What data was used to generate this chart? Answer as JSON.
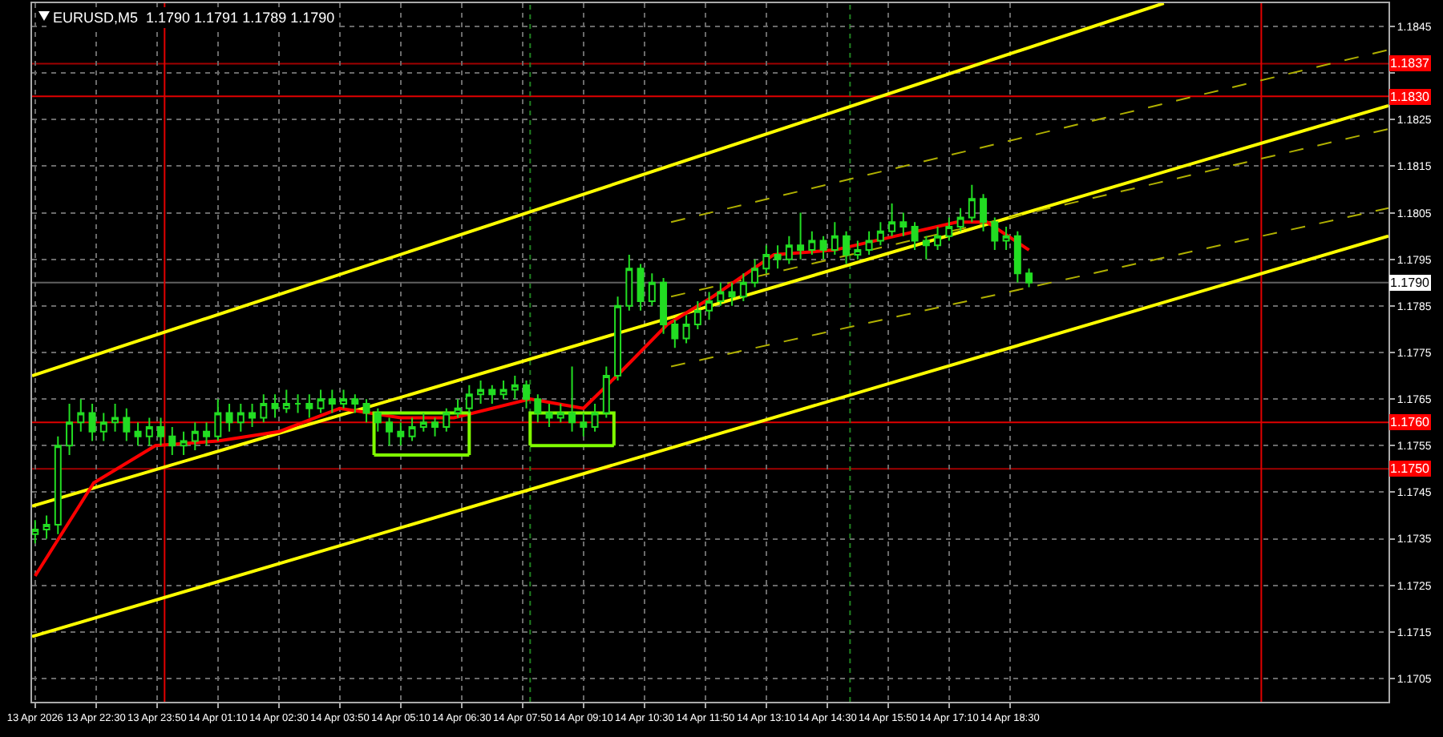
{
  "chart_data": {
    "type": "candlestick",
    "title": "EURUSD,M5  1.1790 1.1791 1.1789 1.1790",
    "xlim": [
      "2026-04-13T21:06",
      "2026-04-15T02:47"
    ],
    "xticks": [
      {
        "value": "2026-04-13T21:10",
        "label": "13 Apr 2026"
      },
      {
        "value": "2026-04-13T22:30",
        "label": "13 Apr 22:30"
      },
      {
        "value": "2026-04-13T23:50",
        "label": "13 Apr 23:50"
      },
      {
        "value": "2026-04-14T01:10",
        "label": "14 Apr 01:10"
      },
      {
        "value": "2026-04-14T02:30",
        "label": "14 Apr 02:30"
      },
      {
        "value": "2026-04-14T03:50",
        "label": "14 Apr 03:50"
      },
      {
        "value": "2026-04-14T05:10",
        "label": "14 Apr 05:10"
      },
      {
        "value": "2026-04-14T06:30",
        "label": "14 Apr 06:30"
      },
      {
        "value": "2026-04-14T07:50",
        "label": "14 Apr 07:50"
      },
      {
        "value": "2026-04-14T09:10",
        "label": "14 Apr 09:10"
      },
      {
        "value": "2026-04-14T10:30",
        "label": "14 Apr 10:30"
      },
      {
        "value": "2026-04-14T11:50",
        "label": "14 Apr 11:50"
      },
      {
        "value": "2026-04-14T13:10",
        "label": "14 Apr 13:10"
      },
      {
        "value": "2026-04-14T14:30",
        "label": "14 Apr 14:30"
      },
      {
        "value": "2026-04-14T15:50",
        "label": "14 Apr 15:50"
      },
      {
        "value": "2026-04-14T17:10",
        "label": "14 Apr 17:10"
      },
      {
        "value": "2026-04-14T18:30",
        "label": "14 Apr 18:30"
      }
    ],
    "ylim": [
      1.17,
      1.185
    ],
    "yticks": [
      1.1705,
      1.1715,
      1.1725,
      1.1735,
      1.1745,
      1.1755,
      1.1765,
      1.1775,
      1.1785,
      1.1795,
      1.1805,
      1.1815,
      1.1825,
      {
        "value": 1.1835,
        "label": null
      },
      1.1845
    ],
    "grid": true,
    "ref_lines": [
      {
        "axis": "y",
        "value": 1.1837,
        "label": "1.1837",
        "color": "#a00000"
      },
      {
        "axis": "y",
        "value": 1.183,
        "label": "1.1830",
        "color": "#e00000"
      },
      {
        "axis": "y",
        "value": 1.176,
        "label": "1.1760",
        "color": "#e00000"
      },
      {
        "axis": "y",
        "value": 1.175,
        "label": "1.1750",
        "color": "#a00000"
      },
      {
        "axis": "y",
        "value": 1.179,
        "label": "1.1790",
        "color": "#606060"
      },
      {
        "axis": "x",
        "value": "2026-04-14T00:00",
        "color": "#e00000"
      },
      {
        "axis": "x",
        "value": "2026-04-15T00:00",
        "color": "#e00000"
      },
      {
        "axis": "x",
        "value": "2026-04-14T08:00",
        "color": "#208020",
        "line_style": "dotted"
      },
      {
        "axis": "x",
        "value": "2026-04-14T15:00",
        "color": "#208020",
        "line_style": "dotted"
      }
    ],
    "series": [
      {
        "type": "line",
        "color": "#ffff00",
        "x": [
          "2026-04-13T21:06",
          "2026-04-14T21:52"
        ],
        "values": [
          1.177,
          1.185
        ]
      },
      {
        "type": "line",
        "color": "#ffff00",
        "x": [
          "2026-04-13T21:06",
          "2026-04-15T02:47"
        ],
        "values": [
          1.1742,
          1.1828
        ]
      },
      {
        "type": "line",
        "color": "#ffff00",
        "x": [
          "2026-04-13T21:06",
          "2026-04-15T02:47"
        ],
        "values": [
          1.1714,
          1.18
        ]
      },
      {
        "type": "line",
        "color": "#b0b000",
        "line_style": "dashed",
        "x": [
          "2026-04-14T11:05",
          "2026-04-15T02:47"
        ],
        "values": [
          1.1803,
          1.184
        ]
      },
      {
        "type": "line",
        "color": "#b0b000",
        "line_style": "dashed",
        "x": [
          "2026-04-14T11:05",
          "2026-04-15T02:47"
        ],
        "values": [
          1.1787,
          1.1823
        ]
      },
      {
        "type": "line",
        "color": "#b0b000",
        "line_style": "dashed",
        "x": [
          "2026-04-14T11:05",
          "2026-04-15T02:47"
        ],
        "values": [
          1.1772,
          1.1806
        ]
      },
      {
        "type": "line",
        "color": "#ff0000",
        "x": [
          "2026-04-13T21:10",
          "2026-04-13T22:27",
          "2026-04-13T23:48",
          "2026-04-14T01:10",
          "2026-04-14T02:30",
          "2026-04-14T03:50",
          "2026-04-14T05:10",
          "2026-04-14T06:20",
          "2026-04-14T08:00",
          "2026-04-14T09:10",
          "2026-04-14T10:00",
          "2026-04-14T11:00",
          "2026-04-14T12:00",
          "2026-04-14T13:20",
          "2026-04-14T14:40",
          "2026-04-14T16:00",
          "2026-04-14T17:20",
          "2026-04-14T18:00",
          "2026-04-14T18:55"
        ],
        "values": [
          1.1727,
          1.1747,
          1.1755,
          1.1756,
          1.1758,
          1.1763,
          1.1761,
          1.1761,
          1.1765,
          1.1763,
          1.1771,
          1.1781,
          1.1787,
          1.1796,
          1.1797,
          1.18,
          1.1803,
          1.1803,
          1.1797
        ]
      },
      {
        "type": "line",
        "color": "#80ff00",
        "x": [
          "2026-04-14T04:35",
          "2026-04-14T04:35",
          "2026-04-14T06:40",
          "2026-04-14T06:40"
        ],
        "values": [
          1.1753,
          1.1762,
          1.1762,
          1.1753
        ]
      },
      {
        "type": "line",
        "color": "#80ff00",
        "x": [
          "2026-04-14T04:35",
          "2026-04-14T06:40"
        ],
        "values": [
          1.1753,
          1.1753
        ]
      },
      {
        "type": "line",
        "color": "#80ff00",
        "x": [
          "2026-04-14T08:00",
          "2026-04-14T08:00",
          "2026-04-14T09:50",
          "2026-04-14T09:50"
        ],
        "values": [
          1.1755,
          1.1762,
          1.1762,
          1.1755
        ]
      },
      {
        "type": "line",
        "color": "#80ff00",
        "x": [
          "2026-04-14T08:00",
          "2026-04-14T09:50"
        ],
        "values": [
          1.1755,
          1.1755
        ]
      },
      {
        "type": "candlestick",
        "color": "#22dd22",
        "x": [
          "2026-04-13T21:10",
          "2026-04-13T21:25",
          "2026-04-13T21:40",
          "2026-04-13T21:55",
          "2026-04-13T22:10",
          "2026-04-13T22:25",
          "2026-04-13T22:40",
          "2026-04-13T22:55",
          "2026-04-13T23:10",
          "2026-04-13T23:25",
          "2026-04-13T23:40",
          "2026-04-13T23:55",
          "2026-04-14T00:10",
          "2026-04-14T00:25",
          "2026-04-14T00:40",
          "2026-04-14T00:55",
          "2026-04-14T01:10",
          "2026-04-14T01:25",
          "2026-04-14T01:40",
          "2026-04-14T01:55",
          "2026-04-14T02:10",
          "2026-04-14T02:25",
          "2026-04-14T02:40",
          "2026-04-14T02:55",
          "2026-04-14T03:10",
          "2026-04-14T03:25",
          "2026-04-14T03:40",
          "2026-04-14T03:55",
          "2026-04-14T04:10",
          "2026-04-14T04:25",
          "2026-04-14T04:40",
          "2026-04-14T04:55",
          "2026-04-14T05:10",
          "2026-04-14T05:25",
          "2026-04-14T05:40",
          "2026-04-14T05:55",
          "2026-04-14T06:10",
          "2026-04-14T06:25",
          "2026-04-14T06:40",
          "2026-04-14T06:55",
          "2026-04-14T07:10",
          "2026-04-14T07:25",
          "2026-04-14T07:40",
          "2026-04-14T07:55",
          "2026-04-14T08:10",
          "2026-04-14T08:25",
          "2026-04-14T08:40",
          "2026-04-14T08:55",
          "2026-04-14T09:10",
          "2026-04-14T09:25",
          "2026-04-14T09:40",
          "2026-04-14T09:55",
          "2026-04-14T10:10",
          "2026-04-14T10:25",
          "2026-04-14T10:40",
          "2026-04-14T10:55",
          "2026-04-14T11:10",
          "2026-04-14T11:25",
          "2026-04-14T11:40",
          "2026-04-14T11:55",
          "2026-04-14T12:10",
          "2026-04-14T12:25",
          "2026-04-14T12:40",
          "2026-04-14T12:55",
          "2026-04-14T13:10",
          "2026-04-14T13:25",
          "2026-04-14T13:40",
          "2026-04-14T13:55",
          "2026-04-14T14:10",
          "2026-04-14T14:25",
          "2026-04-14T14:40",
          "2026-04-14T14:55",
          "2026-04-14T15:10",
          "2026-04-14T15:25",
          "2026-04-14T15:40",
          "2026-04-14T15:55",
          "2026-04-14T16:10",
          "2026-04-14T16:25",
          "2026-04-14T16:40",
          "2026-04-14T16:55",
          "2026-04-14T17:10",
          "2026-04-14T17:25",
          "2026-04-14T17:40",
          "2026-04-14T17:55",
          "2026-04-14T18:10",
          "2026-04-14T18:25",
          "2026-04-14T18:40",
          "2026-04-14T18:55"
        ],
        "ohlc": [
          [
            1.1736,
            1.1739,
            1.1734,
            1.1737
          ],
          [
            1.1737,
            1.174,
            1.1735,
            1.1738
          ],
          [
            1.1738,
            1.1757,
            1.1736,
            1.1755
          ],
          [
            1.1755,
            1.1764,
            1.1753,
            1.176
          ],
          [
            1.176,
            1.1765,
            1.1758,
            1.1762
          ],
          [
            1.1762,
            1.1764,
            1.1756,
            1.1758
          ],
          [
            1.1758,
            1.1762,
            1.1756,
            1.176
          ],
          [
            1.176,
            1.1764,
            1.1758,
            1.1761
          ],
          [
            1.1761,
            1.1763,
            1.1756,
            1.1758
          ],
          [
            1.1758,
            1.176,
            1.1755,
            1.1757
          ],
          [
            1.1757,
            1.1761,
            1.1755,
            1.1759
          ],
          [
            1.1759,
            1.1761,
            1.1755,
            1.1757
          ],
          [
            1.1757,
            1.1759,
            1.1753,
            1.1755
          ],
          [
            1.1755,
            1.1758,
            1.1753,
            1.1756
          ],
          [
            1.1756,
            1.176,
            1.1754,
            1.1758
          ],
          [
            1.1758,
            1.176,
            1.1755,
            1.1757
          ],
          [
            1.1757,
            1.1765,
            1.1756,
            1.1762
          ],
          [
            1.1762,
            1.1764,
            1.1758,
            1.176
          ],
          [
            1.176,
            1.1764,
            1.1758,
            1.1762
          ],
          [
            1.1762,
            1.1764,
            1.1759,
            1.1761
          ],
          [
            1.1761,
            1.1766,
            1.176,
            1.1764
          ],
          [
            1.1764,
            1.1766,
            1.1761,
            1.1763
          ],
          [
            1.1763,
            1.1767,
            1.1762,
            1.1764
          ],
          [
            1.1764,
            1.1766,
            1.1762,
            1.1764
          ],
          [
            1.1764,
            1.1766,
            1.1761,
            1.1763
          ],
          [
            1.1763,
            1.1767,
            1.1762,
            1.1765
          ],
          [
            1.1765,
            1.1767,
            1.1762,
            1.1764
          ],
          [
            1.1764,
            1.1767,
            1.1763,
            1.1765
          ],
          [
            1.1765,
            1.1766,
            1.1762,
            1.1764
          ],
          [
            1.1764,
            1.1765,
            1.176,
            1.1762
          ],
          [
            1.1762,
            1.1763,
            1.1758,
            1.176
          ],
          [
            1.176,
            1.1761,
            1.1755,
            1.1758
          ],
          [
            1.1758,
            1.176,
            1.1755,
            1.1757
          ],
          [
            1.1757,
            1.1761,
            1.1756,
            1.1759
          ],
          [
            1.1759,
            1.1762,
            1.1758,
            1.176
          ],
          [
            1.176,
            1.1761,
            1.1757,
            1.1759
          ],
          [
            1.1759,
            1.1763,
            1.1758,
            1.1762
          ],
          [
            1.1762,
            1.1765,
            1.1761,
            1.1763
          ],
          [
            1.1763,
            1.1768,
            1.1762,
            1.1766
          ],
          [
            1.1766,
            1.1769,
            1.1764,
            1.1767
          ],
          [
            1.1767,
            1.1768,
            1.1764,
            1.1766
          ],
          [
            1.1766,
            1.1769,
            1.1765,
            1.1767
          ],
          [
            1.1767,
            1.177,
            1.1765,
            1.1768
          ],
          [
            1.1768,
            1.1769,
            1.1763,
            1.1765
          ],
          [
            1.1765,
            1.1766,
            1.176,
            1.1762
          ],
          [
            1.1762,
            1.1764,
            1.1759,
            1.1761
          ],
          [
            1.1761,
            1.1764,
            1.176,
            1.1762
          ],
          [
            1.1762,
            1.1772,
            1.1758,
            1.176
          ],
          [
            1.176,
            1.1762,
            1.1757,
            1.1759
          ],
          [
            1.1759,
            1.1764,
            1.1758,
            1.1762
          ],
          [
            1.1762,
            1.1772,
            1.1761,
            1.177
          ],
          [
            1.177,
            1.1787,
            1.1769,
            1.1785
          ],
          [
            1.1785,
            1.1796,
            1.1784,
            1.1793
          ],
          [
            1.1793,
            1.1794,
            1.1784,
            1.1786
          ],
          [
            1.1786,
            1.1792,
            1.1785,
            1.179
          ],
          [
            1.179,
            1.1791,
            1.1779,
            1.1781
          ],
          [
            1.1781,
            1.1782,
            1.1776,
            1.1778
          ],
          [
            1.1778,
            1.1783,
            1.1777,
            1.1781
          ],
          [
            1.1781,
            1.1786,
            1.178,
            1.1784
          ],
          [
            1.1784,
            1.1788,
            1.1782,
            1.1786
          ],
          [
            1.1786,
            1.179,
            1.1785,
            1.1788
          ],
          [
            1.1788,
            1.179,
            1.1785,
            1.1787
          ],
          [
            1.1787,
            1.1792,
            1.1786,
            1.179
          ],
          [
            1.179,
            1.1795,
            1.1789,
            1.1793
          ],
          [
            1.1793,
            1.1798,
            1.1792,
            1.1796
          ],
          [
            1.1796,
            1.1798,
            1.1793,
            1.1795
          ],
          [
            1.1795,
            1.18,
            1.1794,
            1.1798
          ],
          [
            1.1798,
            1.1805,
            1.1795,
            1.1797
          ],
          [
            1.1797,
            1.1801,
            1.1796,
            1.1799
          ],
          [
            1.1799,
            1.18,
            1.1795,
            1.1797
          ],
          [
            1.1797,
            1.1803,
            1.1796,
            1.18
          ],
          [
            1.18,
            1.1801,
            1.1794,
            1.1796
          ],
          [
            1.1796,
            1.1799,
            1.1795,
            1.1797
          ],
          [
            1.1797,
            1.1801,
            1.1796,
            1.1799
          ],
          [
            1.1799,
            1.1803,
            1.1798,
            1.1801
          ],
          [
            1.1801,
            1.1807,
            1.18,
            1.1803
          ],
          [
            1.1803,
            1.1805,
            1.18,
            1.1802
          ],
          [
            1.1802,
            1.1803,
            1.1797,
            1.1799
          ],
          [
            1.1799,
            1.18,
            1.1795,
            1.1798
          ],
          [
            1.1798,
            1.1802,
            1.1797,
            1.18
          ],
          [
            1.18,
            1.1804,
            1.1799,
            1.1802
          ],
          [
            1.1802,
            1.1806,
            1.1801,
            1.1804
          ],
          [
            1.1804,
            1.1811,
            1.1803,
            1.1808
          ],
          [
            1.1808,
            1.1809,
            1.1801,
            1.1803
          ],
          [
            1.1803,
            1.1804,
            1.1797,
            1.1799
          ],
          [
            1.1799,
            1.1802,
            1.1797,
            1.18
          ],
          [
            1.18,
            1.1801,
            1.179,
            1.1792
          ],
          [
            1.1792,
            1.1793,
            1.1789,
            1.179
          ]
        ]
      }
    ]
  }
}
